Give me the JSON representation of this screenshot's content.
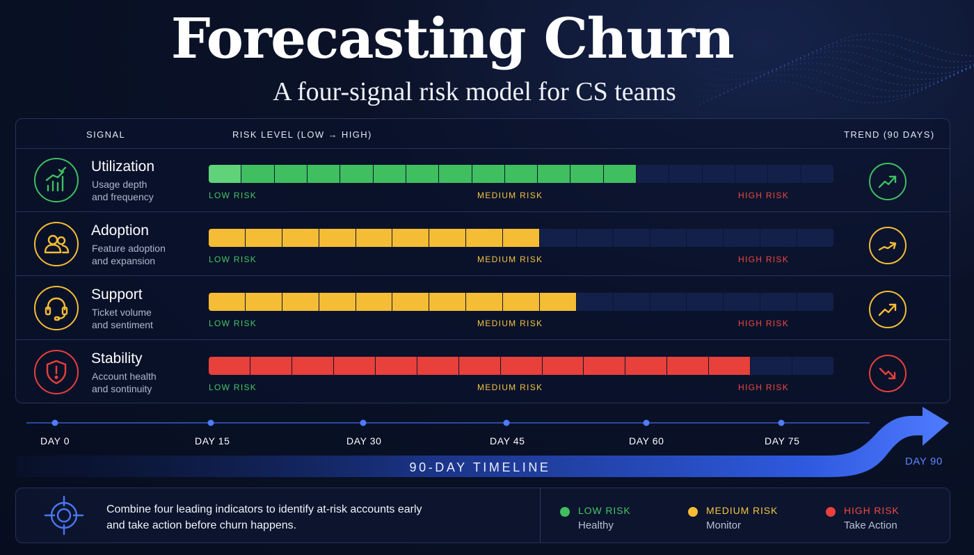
{
  "header": {
    "title": "Forecasting Churn",
    "subtitle": "A four-signal risk model for CS teams"
  },
  "table": {
    "col_signal": "SIGNAL",
    "col_risk": "RISK LEVEL (LOW → HIGH)",
    "col_trend": "TREND (90 DAYS)",
    "label_low": "LOW RISK",
    "label_medium": "MEDIUM RISK",
    "label_high": "HIGH RISK",
    "rows": [
      {
        "name": "Utilization",
        "desc1": "Usage depth",
        "desc2": "and frequency",
        "icon": "bar-chart-check-icon",
        "trend_icon": "trend-up-icon"
      },
      {
        "name": "Adoption",
        "desc1": "Feature adoption",
        "desc2": "and expansion",
        "icon": "users-icon",
        "trend_icon": "trend-slight-up-icon"
      },
      {
        "name": "Support",
        "desc1": "Ticket volume",
        "desc2": "and sentiment",
        "icon": "headset-icon",
        "trend_icon": "trend-up-icon"
      },
      {
        "name": "Stability",
        "desc1": "Account health",
        "desc2": "and sontinuity",
        "icon": "shield-alert-icon",
        "trend_icon": "trend-down-icon"
      }
    ]
  },
  "timeline": {
    "ticks": [
      "DAY 0",
      "DAY 15",
      "DAY 30",
      "DAY 45",
      "DAY 60",
      "DAY 75"
    ],
    "end_label": "DAY 90",
    "label": "90-DAY TIMELINE"
  },
  "footer": {
    "summary_line1": "Combine four leading indicators to identify at-risk accounts early",
    "summary_line2": "and take action before churn happens.",
    "target_icon": "target-icon",
    "legend": [
      {
        "title": "LOW RISK",
        "subtitle": "Healthy",
        "color": "#3fbf5f"
      },
      {
        "title": "MEDIUM RISK",
        "subtitle": "Monitor",
        "color": "#f5bd35"
      },
      {
        "title": "HIGH RISK",
        "subtitle": "Take Action",
        "color": "#e8403b"
      }
    ]
  },
  "chart_data": {
    "type": "bar",
    "title": "Forecasting Churn",
    "subtitle": "A four-signal risk model for CS teams",
    "xlabel": "RISK LEVEL (LOW → HIGH)",
    "categories": [
      "Utilization",
      "Adoption",
      "Support",
      "Stability"
    ],
    "values": [
      0.65,
      0.57,
      0.6,
      0.9
    ],
    "segments_total": [
      19,
      17,
      17,
      15
    ],
    "segments_filled": [
      13,
      9,
      10,
      13
    ],
    "level_colors": [
      "#3fbf5f",
      "#f5bd35",
      "#f5bd35",
      "#e8403b"
    ],
    "trend": [
      "up",
      "slight-up",
      "up",
      "down"
    ],
    "xlim": [
      0,
      1
    ],
    "legend_position": "bottom-right"
  }
}
